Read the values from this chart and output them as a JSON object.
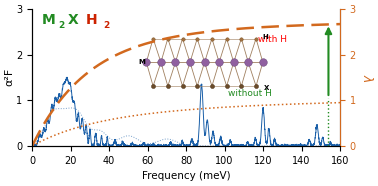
{
  "xlabel": "Frequency (meV)",
  "ylabel_left": "α²F",
  "ylabel_right": "λ",
  "xlim": [
    0,
    160
  ],
  "ylim_left": [
    0,
    3.0
  ],
  "ylim_right": [
    0,
    3.0
  ],
  "yticks_left": [
    0.0,
    1.0,
    2.0,
    3.0
  ],
  "yticks_right": [
    0.0,
    1.0,
    2.0,
    3.0
  ],
  "xticks": [
    0,
    20,
    40,
    60,
    80,
    100,
    120,
    140,
    160
  ],
  "color_blue": "#1a5fa8",
  "color_orange": "#d2691e",
  "color_green_M": "#228B22",
  "color_red_H": "#cc2200",
  "color_arrow": "#228B22",
  "bg_color": "#f0ece4"
}
